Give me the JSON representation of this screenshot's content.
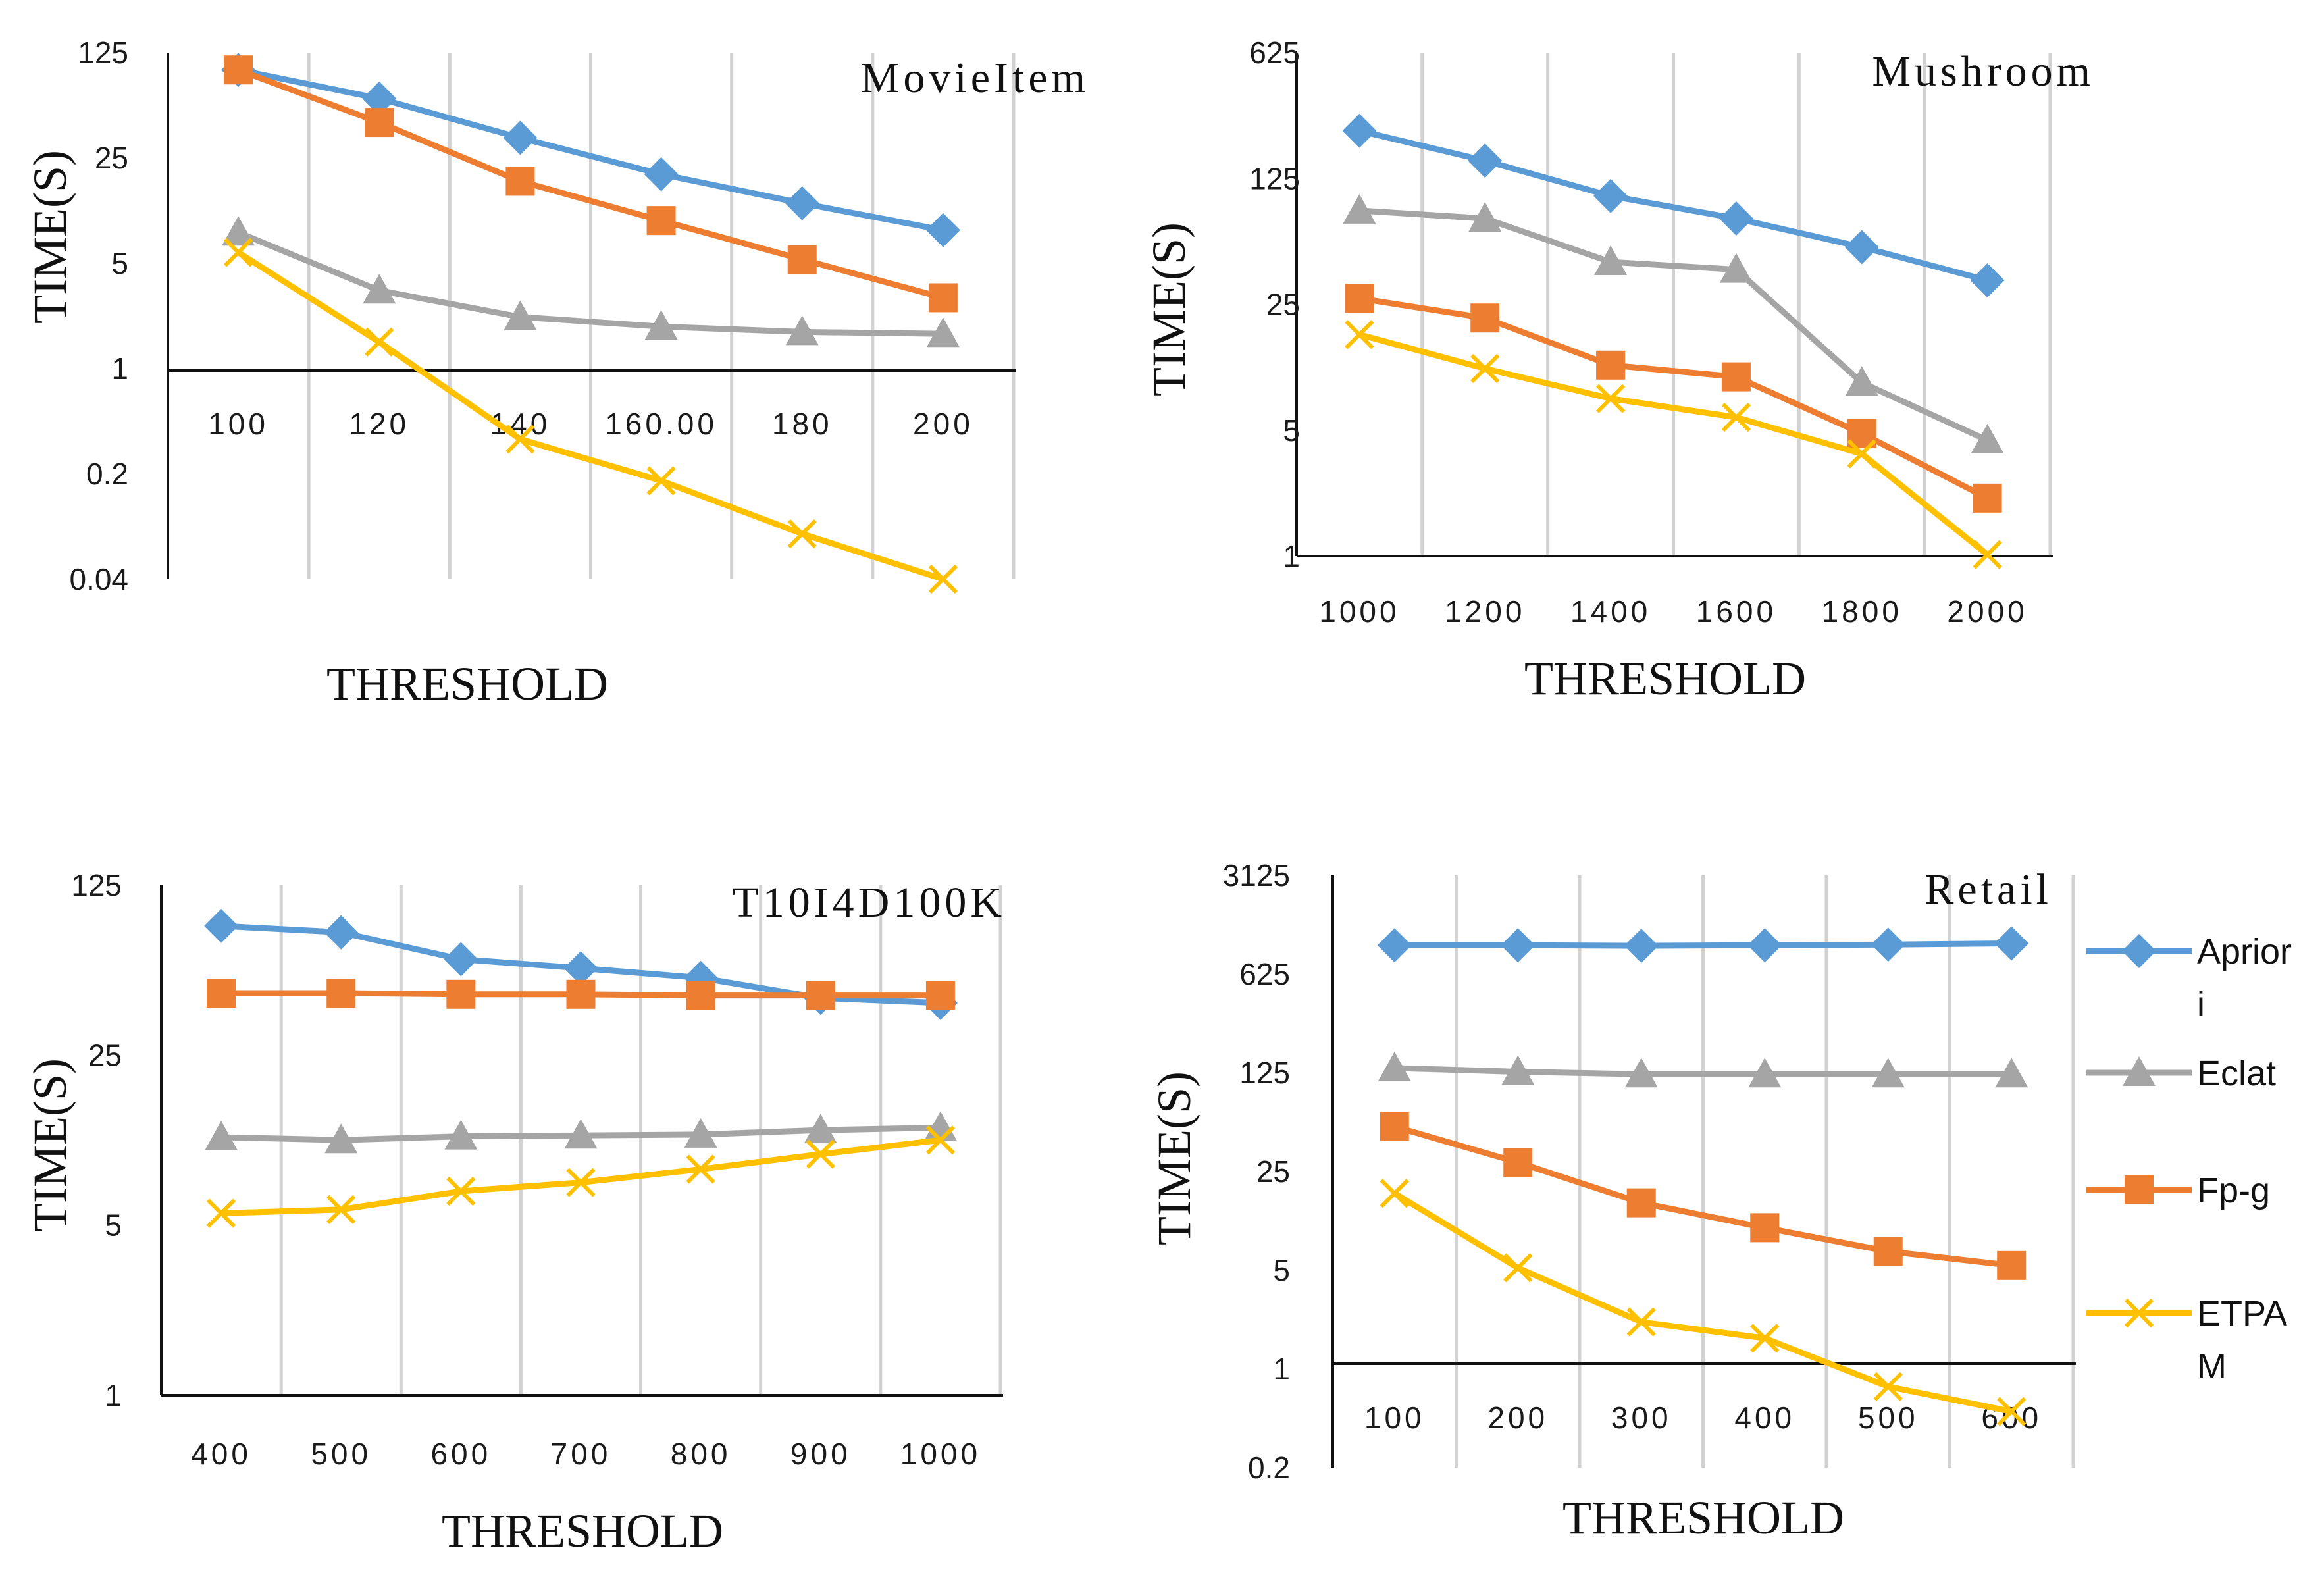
{
  "colors": {
    "apriori": "#5b9bd5",
    "eclat": "#a5a5a5",
    "fpg": "#ed7d31",
    "etpam": "#ffc000"
  },
  "legend": [
    {
      "key": "apriori",
      "lines": [
        "Aprior",
        "i"
      ],
      "marker": "diamond"
    },
    {
      "key": "eclat",
      "lines": [
        "Eclat"
      ],
      "marker": "triangle"
    },
    {
      "key": "fpg",
      "lines": [
        "Fp-g"
      ],
      "marker": "square"
    },
    {
      "key": "etpam",
      "lines": [
        "ETPA",
        "M"
      ],
      "marker": "x"
    }
  ],
  "chart_data": [
    {
      "type": "line",
      "title": "MovieItem",
      "xlabel": "THRESHOLD",
      "ylabel": "TIME(S)",
      "yscale": "log5",
      "categories": [
        "100",
        "120",
        "140",
        "160.00",
        "180",
        "200"
      ],
      "yticks": [
        "125",
        "25",
        "5",
        "1",
        "0.2",
        "0.04"
      ],
      "ylim": [
        0.04,
        125
      ],
      "series": [
        {
          "name": "Apriori",
          "key": "apriori",
          "values": [
            96,
            62,
            34,
            19.5,
            12.5,
            8.3
          ]
        },
        {
          "name": "Eclat",
          "key": "eclat",
          "values": [
            8,
            3.3,
            2.2,
            1.9,
            1.75,
            1.7
          ]
        },
        {
          "name": "Fp-g",
          "key": "fpg",
          "values": [
            96,
            43,
            17.5,
            9.6,
            5.3,
            2.95
          ]
        },
        {
          "name": "ETPAM",
          "key": "etpam",
          "values": [
            5.9,
            1.5,
            0.34,
            0.18,
            0.08,
            0.04
          ]
        }
      ]
    },
    {
      "type": "line",
      "title": "Mushroom",
      "xlabel": "THRESHOLD",
      "ylabel": "TIME(S)",
      "yscale": "log5",
      "categories": [
        "1000",
        "1200",
        "1400",
        "1600",
        "1800",
        "2000"
      ],
      "yticks": [
        "625",
        "125",
        "25",
        "5",
        "1"
      ],
      "ylim": [
        1,
        625
      ],
      "series": [
        {
          "name": "Apriori",
          "key": "apriori",
          "values": [
            230,
            157,
            100,
            75,
            52,
            34
          ]
        },
        {
          "name": "Eclat",
          "key": "eclat",
          "values": [
            83,
            75,
            43,
            39,
            9.2,
            4.4
          ]
        },
        {
          "name": "Fp-g",
          "key": "fpg",
          "values": [
            27,
            21,
            11.5,
            9.9,
            4.8,
            2.1
          ]
        },
        {
          "name": "ETPAM",
          "key": "etpam",
          "values": [
            17,
            11,
            7.5,
            5.9,
            3.7,
            1.02
          ]
        }
      ]
    },
    {
      "type": "line",
      "title": "T10I4D100K",
      "xlabel": "THRESHOLD",
      "ylabel": "TIME(S)",
      "yscale": "log5",
      "categories": [
        "400",
        "500",
        "600",
        "700",
        "800",
        "900",
        "1000"
      ],
      "yticks": [
        "125",
        "25",
        "5",
        "1"
      ],
      "ylim": [
        1,
        125
      ],
      "series": [
        {
          "name": "Apriori",
          "key": "apriori",
          "values": [
            85,
            80,
            62,
            57,
            52,
            43,
            41
          ]
        },
        {
          "name": "Eclat",
          "key": "eclat",
          "values": [
            11.5,
            11.2,
            11.6,
            11.7,
            11.8,
            12.3,
            12.6
          ]
        },
        {
          "name": "Fp-g",
          "key": "fpg",
          "values": [
            45,
            45,
            44.5,
            44.5,
            44,
            44,
            44
          ]
        },
        {
          "name": "ETPAM",
          "key": "etpam",
          "values": [
            5.6,
            5.8,
            6.9,
            7.5,
            8.5,
            9.8,
            11.2
          ]
        }
      ]
    },
    {
      "type": "line",
      "title": "Retail",
      "xlabel": "THRESHOLD",
      "ylabel": "TIME(S)",
      "yscale": "log5",
      "categories": [
        "100",
        "200",
        "300",
        "400",
        "500",
        "600"
      ],
      "yticks": [
        "3125",
        "625",
        "125",
        "25",
        "5",
        "1",
        "0.2"
      ],
      "ylim": [
        0.2,
        3125
      ],
      "series": [
        {
          "name": "Apriori",
          "key": "apriori",
          "values": [
            1000,
            1000,
            990,
            1000,
            1010,
            1030
          ]
        },
        {
          "name": "Eclat",
          "key": "eclat",
          "values": [
            135,
            127,
            122,
            122,
            122,
            122
          ]
        },
        {
          "name": "Fp-g",
          "key": "fpg",
          "values": [
            52,
            29,
            15,
            10,
            6.8,
            5.4
          ]
        },
        {
          "name": "ETPAM",
          "key": "etpam",
          "values": [
            17.5,
            5.2,
            2.15,
            1.65,
            0.75,
            0.5
          ]
        }
      ]
    }
  ]
}
